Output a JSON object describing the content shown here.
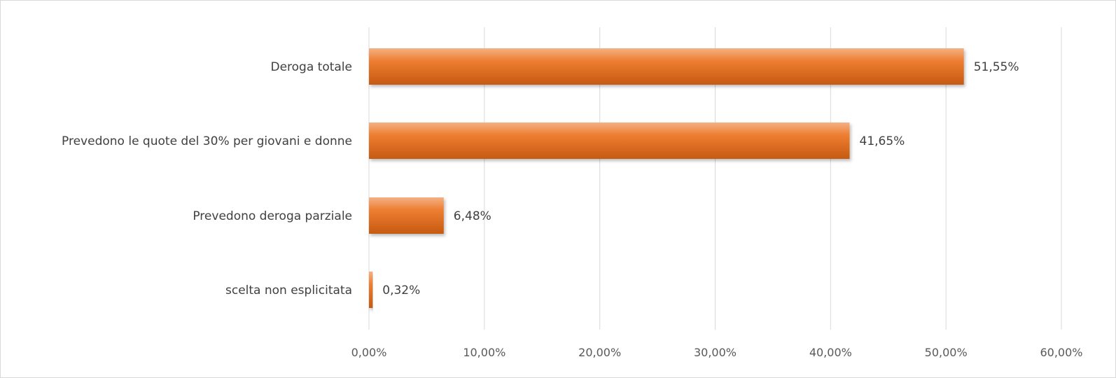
{
  "chart_data": {
    "type": "bar",
    "orientation": "horizontal",
    "categories": [
      "Deroga totale",
      "Prevedono le quote del 30%  per giovani e donne",
      "Prevedono deroga parziale",
      "scelta non esplicitata"
    ],
    "values": [
      51.55,
      41.65,
      6.48,
      0.32
    ],
    "data_labels": [
      "51,55%",
      "41,65%",
      "6,48%",
      "0,32%"
    ],
    "x_ticks": [
      "0,00%",
      "10,00%",
      "20,00%",
      "30,00%",
      "40,00%",
      "50,00%",
      "60,00%"
    ],
    "xlim": [
      0,
      60
    ],
    "grid": true,
    "legend": "none",
    "title": "",
    "xlabel": "",
    "ylabel": "",
    "colors": {
      "bar": "#ED7D31",
      "bar_light": "#F4B183",
      "bar_dark": "#C55A11",
      "grid": "#D9D9D9"
    }
  }
}
